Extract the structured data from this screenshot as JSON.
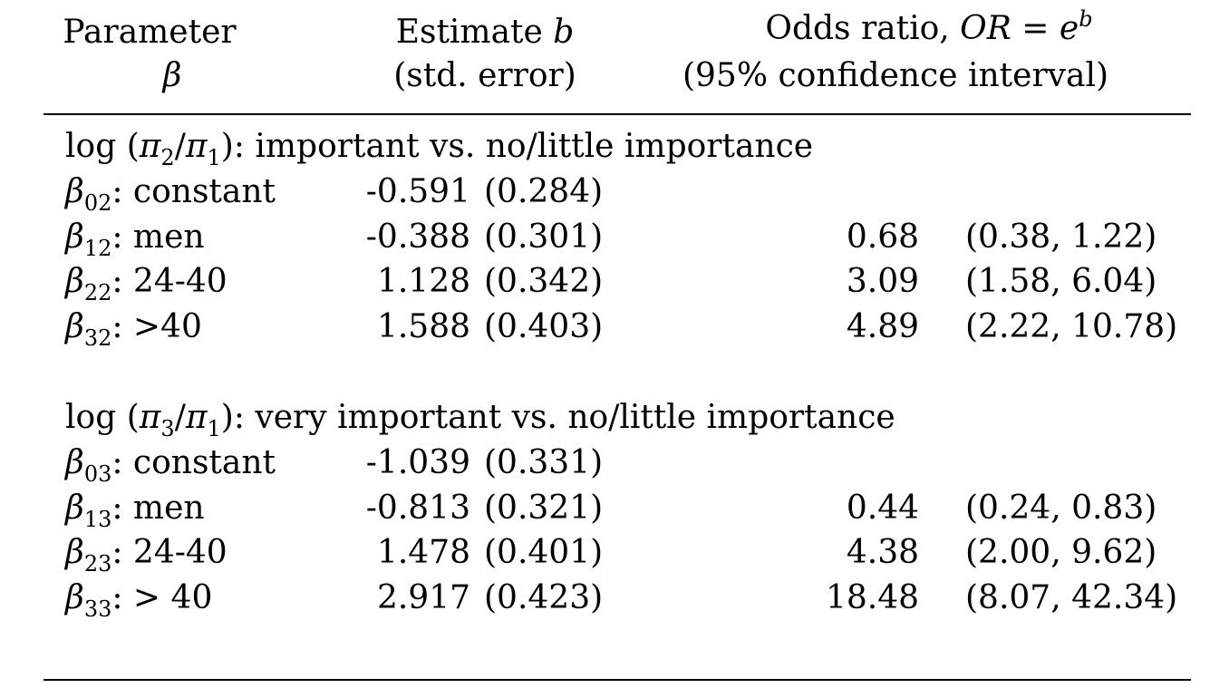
{
  "header": {
    "col1_line1": "Parameter",
    "col1_line2": "β",
    "col2_line1": "Estimate",
    "col2_line1_var": "b",
    "col2_line2": "(std. error)",
    "col3_line1": "Odds ratio,",
    "col3_line1_math": "OR",
    "col3_line1_eq": "=",
    "col3_line1_e": "e",
    "col3_line1_sup": "b",
    "col3_line2": "(95% confidence interval)"
  },
  "sections": [
    {
      "title_log": "log",
      "title_num": "π",
      "title_num_sub": "2",
      "title_den": "π",
      "title_den_sub": "1",
      "title_text": ": important vs. no/little importance",
      "rows": [
        {
          "param": "β",
          "param_sub": "02",
          "label": ": constant",
          "estimate": "-0.591",
          "se": "(0.284)",
          "or": "",
          "ci": ""
        },
        {
          "param": "β",
          "param_sub": "12",
          "label": ": men",
          "estimate": "-0.388",
          "se": "(0.301)",
          "or": "0.68",
          "ci": "(0.38, 1.22)"
        },
        {
          "param": "β",
          "param_sub": "22",
          "label": ": 24-40",
          "estimate": "1.128",
          "se": "(0.342)",
          "or": "3.09",
          "ci": "(1.58, 6.04)"
        },
        {
          "param": "β",
          "param_sub": "32",
          "label": ": >40",
          "estimate": "1.588",
          "se": "(0.403)",
          "or": "4.89",
          "ci": "(2.22, 10.78)"
        }
      ]
    },
    {
      "title_log": "log",
      "title_num": "π",
      "title_num_sub": "3",
      "title_den": "π",
      "title_den_sub": "1",
      "title_text": ": very important vs. no/little importance",
      "rows": [
        {
          "param": "β",
          "param_sub": "03",
          "label": ": constant",
          "estimate": "-1.039",
          "se": "(0.331)",
          "or": "",
          "ci": ""
        },
        {
          "param": "β",
          "param_sub": "13",
          "label": ": men",
          "estimate": "-0.813",
          "se": "(0.321)",
          "or": "0.44",
          "ci": "(0.24, 0.83)"
        },
        {
          "param": "β",
          "param_sub": "23",
          "label": ": 24-40",
          "estimate": "1.478",
          "se": "(0.401)",
          "or": "4.38",
          "ci": "(2.00, 9.62)"
        },
        {
          "param": "β",
          "param_sub": "33",
          "label": ": > 40",
          "estimate": "2.917",
          "se": "(0.423)",
          "or": "18.48",
          "ci": "(8.07, 42.34)"
        }
      ]
    }
  ]
}
